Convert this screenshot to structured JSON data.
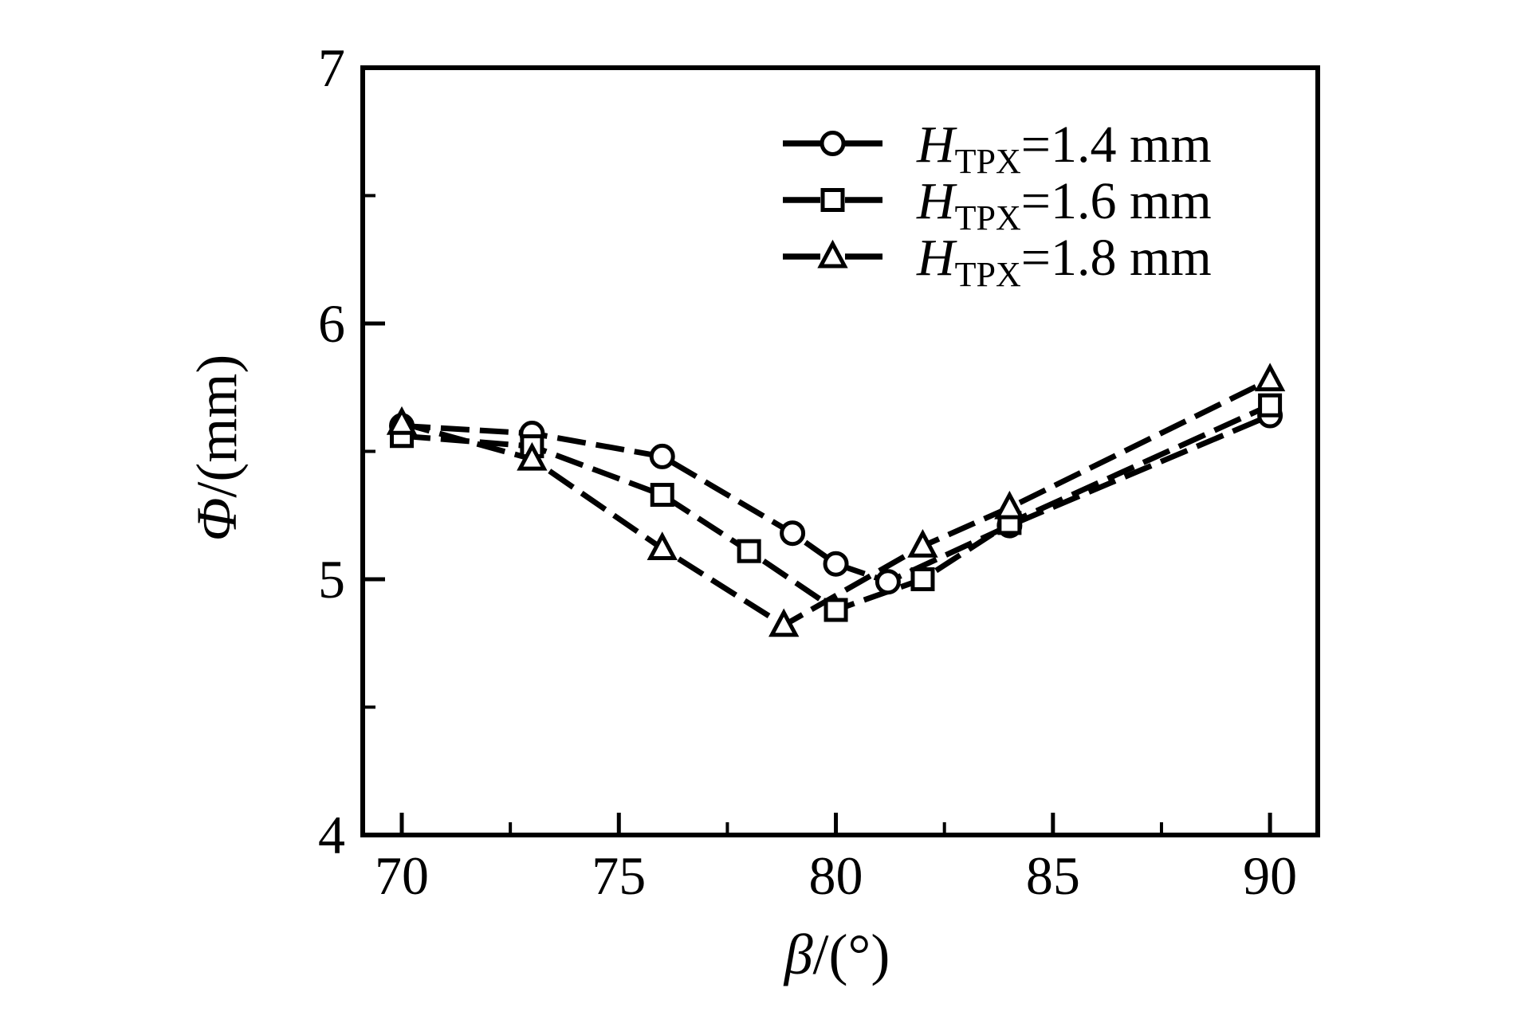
{
  "figure": {
    "background": "#ffffff",
    "ink": "#000000"
  },
  "chart_data": {
    "type": "line",
    "title": "",
    "xlabel": "β/(°)",
    "xlabel_symbol": "β",
    "xlabel_rest": "/(°)",
    "ylabel": "Φ/(mm)",
    "ylabel_symbol": "Φ",
    "ylabel_rest": "/(mm)",
    "xlim": [
      69.1,
      91.1
    ],
    "ylim": [
      4,
      7
    ],
    "x_major_ticks": [
      70,
      75,
      80,
      85,
      90
    ],
    "x_minor_ticks": [
      72.5,
      77.5,
      82.5,
      87.5
    ],
    "y_major_ticks": [
      4,
      5,
      6,
      7
    ],
    "y_minor_ticks": [
      4.5,
      5.5,
      6.5
    ],
    "grid": false,
    "line_style": "dashed",
    "marker_fill": "#ffffff",
    "legend": {
      "position": "upper-right-inside",
      "entries": [
        {
          "marker": "circle",
          "label_prefix": "H",
          "label_sub": "TPX",
          "label_rest": "=1.4 mm"
        },
        {
          "marker": "square",
          "label_prefix": "H",
          "label_sub": "TPX",
          "label_rest": "=1.6 mm"
        },
        {
          "marker": "triangle",
          "label_prefix": "H",
          "label_sub": "TPX",
          "label_rest": "=1.8 mm"
        }
      ]
    },
    "series": [
      {
        "name": "H_TPX=1.4 mm",
        "marker": "circle",
        "points": [
          [
            70,
            5.6
          ],
          [
            73,
            5.57
          ],
          [
            76,
            5.48
          ],
          [
            79,
            5.18
          ],
          [
            80,
            5.06
          ],
          [
            81.2,
            4.99
          ],
          [
            84,
            5.21
          ],
          [
            90,
            5.64
          ]
        ]
      },
      {
        "name": "H_TPX=1.6 mm",
        "marker": "square",
        "points": [
          [
            70,
            5.56
          ],
          [
            73,
            5.52
          ],
          [
            76,
            5.33
          ],
          [
            78,
            5.11
          ],
          [
            80,
            4.88
          ],
          [
            82,
            5.0
          ],
          [
            84,
            5.22
          ],
          [
            90,
            5.68
          ]
        ]
      },
      {
        "name": "H_TPX=1.8 mm",
        "marker": "triangle",
        "points": [
          [
            70,
            5.61
          ],
          [
            73,
            5.47
          ],
          [
            76,
            5.12
          ],
          [
            78.8,
            4.82
          ],
          [
            82,
            5.13
          ],
          [
            84,
            5.28
          ],
          [
            90,
            5.78
          ]
        ]
      }
    ]
  }
}
